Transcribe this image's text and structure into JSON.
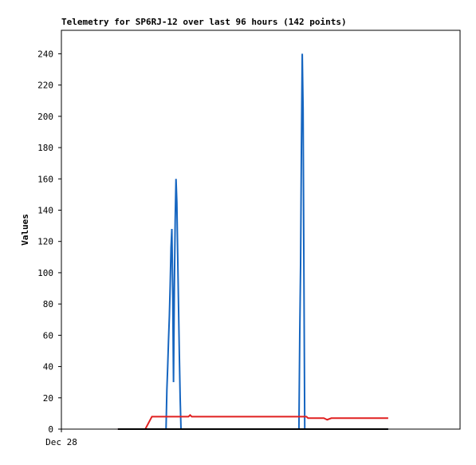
{
  "chart_data": {
    "type": "line",
    "title": "Telemetry for SP6RJ-12 over last 96 hours (142 points)",
    "y_label": "Values",
    "xlim": [
      0,
      96
    ],
    "xticks": [
      {
        "value": 0,
        "label": "Dec 28"
      }
    ],
    "ylim": [
      0,
      255
    ],
    "yticks": [
      0,
      20,
      40,
      60,
      80,
      100,
      120,
      140,
      160,
      180,
      200,
      220,
      240
    ],
    "grid": false,
    "series": [
      {
        "color": "#1565c0",
        "x": [
          13.6,
          25.2,
          25.4,
          25.6,
          25.8,
          26.0,
          26.2,
          26.4,
          26.6,
          26.8,
          27.0,
          27.2,
          27.4,
          27.6,
          27.8,
          28.0,
          28.2,
          28.4,
          28.6,
          28.8,
          57.2,
          57.4,
          57.6,
          57.8,
          58.0,
          58.2,
          58.4,
          58.6,
          78.7
        ],
        "values": [
          0,
          0,
          25,
          40,
          57,
          72,
          92,
          116,
          128,
          90,
          30,
          90,
          133,
          160,
          145,
          112,
          80,
          48,
          20,
          0,
          0,
          60,
          105,
          180,
          240,
          205,
          100,
          0,
          0
        ]
      },
      {
        "color": "#e02020",
        "x": [
          13.6,
          20.2,
          21.8,
          30.6,
          31.0,
          31.4,
          31.8,
          59.0,
          59.4,
          63.2,
          64.0,
          65.0,
          78.7
        ],
        "values": [
          0,
          0,
          8,
          8,
          9,
          8,
          8,
          8,
          7,
          7,
          6,
          7,
          7
        ]
      },
      {
        "color": "#000000",
        "x": [
          13.6,
          78.7
        ],
        "values": [
          0,
          0
        ]
      }
    ]
  }
}
